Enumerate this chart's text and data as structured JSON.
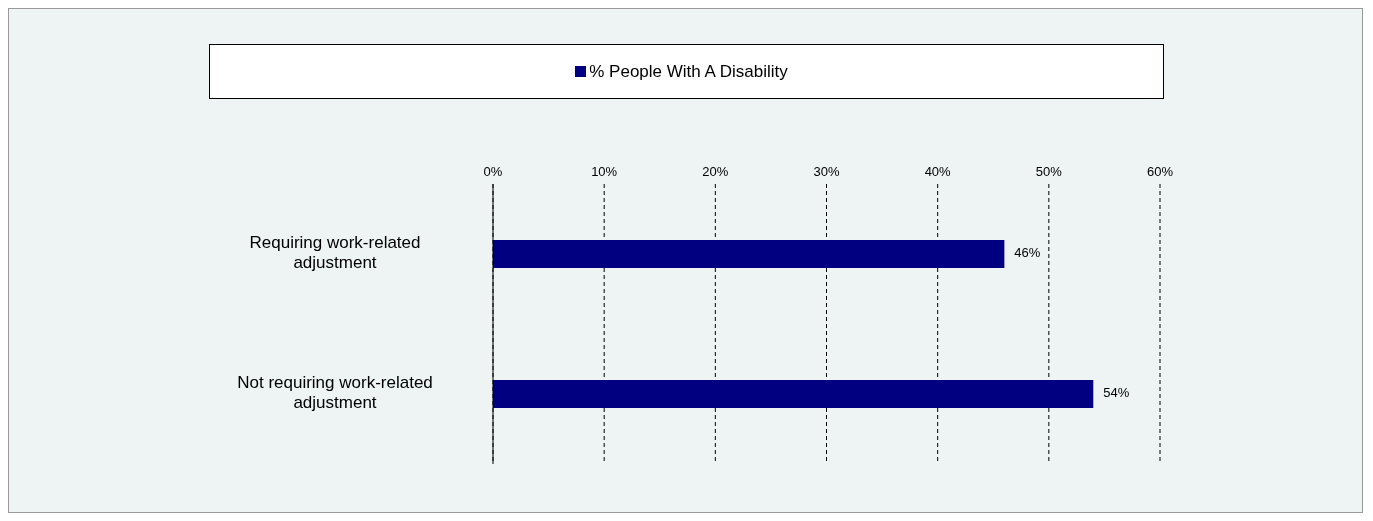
{
  "chart_data": {
    "type": "bar",
    "orientation": "horizontal",
    "categories": [
      "Requiring work-related adjustment",
      "Not requiring work-related adjustment"
    ],
    "series": [
      {
        "name": "% People With A Disability",
        "color": "#000080",
        "values": [
          46,
          54
        ],
        "value_labels": [
          "46%",
          "54%"
        ]
      }
    ],
    "xlim": [
      0,
      60
    ],
    "xticks": [
      {
        "value": 0,
        "label": "0%"
      },
      {
        "value": 10,
        "label": "10%"
      },
      {
        "value": 20,
        "label": "20%"
      },
      {
        "value": 30,
        "label": "30%"
      },
      {
        "value": 40,
        "label": "40%"
      },
      {
        "value": 50,
        "label": "50%"
      },
      {
        "value": 60,
        "label": "60%"
      }
    ],
    "grid": "x",
    "legend": "top"
  }
}
